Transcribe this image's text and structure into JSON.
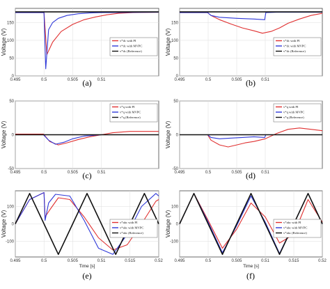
{
  "chart_data": [
    {
      "type": "line",
      "panel_label": "(a)",
      "ylabel": "Voltage (V)",
      "xlabel": "",
      "xlim": [
        0.495,
        0.52
      ],
      "ylim": [
        0,
        190
      ],
      "xticks": [
        0.495,
        0.5,
        0.505,
        0.51
      ],
      "xtick_labels": [
        "0.495",
        "0.5",
        "0.505",
        "0.51"
      ],
      "yticks": [
        0,
        50,
        100,
        150
      ],
      "ytick_labels": [
        "0",
        "50",
        "100",
        "150"
      ],
      "legend_position": "center-right",
      "series": [
        {
          "name": "v*dc with PI",
          "color": "#e03030",
          "x": [
            0.495,
            0.4999,
            0.5,
            0.5005,
            0.5015,
            0.503,
            0.505,
            0.507,
            0.509,
            0.511,
            0.513,
            0.5155,
            0.52
          ],
          "y": [
            178,
            178,
            178,
            60,
            95,
            125,
            145,
            158,
            166,
            172,
            176,
            178,
            179
          ]
        },
        {
          "name": "v*dc with MVPC",
          "color": "#2e38d8",
          "x": [
            0.495,
            0.4999,
            0.5,
            0.5003,
            0.5008,
            0.5015,
            0.5025,
            0.504,
            0.506,
            0.508,
            0.51,
            0.52
          ],
          "y": [
            178,
            178,
            178,
            20,
            130,
            150,
            162,
            170,
            175,
            177,
            178,
            179
          ]
        },
        {
          "name": "v*dc (Reference)",
          "color": "#111111",
          "x": [
            0.495,
            0.52
          ],
          "y": [
            180,
            180
          ]
        }
      ]
    },
    {
      "type": "line",
      "panel_label": "(b)",
      "ylabel": "Voltage (V)",
      "xlabel": "",
      "xlim": [
        0.495,
        0.52
      ],
      "ylim": [
        0,
        190
      ],
      "xticks": [
        0.495,
        0.5,
        0.505,
        0.51
      ],
      "xtick_labels": [
        "0.495",
        "0.5",
        "0.505",
        "0.51"
      ],
      "yticks": [
        0,
        50,
        100,
        150
      ],
      "ytick_labels": [
        "0",
        "50",
        "100",
        "150"
      ],
      "legend_position": "center-right",
      "series": [
        {
          "name": "v*dc with PI",
          "color": "#e03030",
          "x": [
            0.495,
            0.4999,
            0.5005,
            0.502,
            0.504,
            0.506,
            0.508,
            0.5095,
            0.511,
            0.5125,
            0.514,
            0.516,
            0.518,
            0.52
          ],
          "y": [
            178,
            178,
            170,
            158,
            146,
            135,
            127,
            120,
            125,
            135,
            148,
            160,
            170,
            176
          ]
        },
        {
          "name": "v*dc with MVPC",
          "color": "#2e38d8",
          "x": [
            0.495,
            0.4999,
            0.5005,
            0.502,
            0.505,
            0.508,
            0.5099,
            0.5101,
            0.512,
            0.52
          ],
          "y": [
            178,
            178,
            170,
            165,
            162,
            160,
            158,
            178,
            179,
            179
          ]
        },
        {
          "name": "v*dc (Reference)",
          "color": "#111111",
          "x": [
            0.495,
            0.52
          ],
          "y": [
            180,
            180
          ]
        }
      ]
    },
    {
      "type": "line",
      "panel_label": "(c)",
      "ylabel": "Voltage (V)",
      "xlabel": "",
      "xlim": [
        0.495,
        0.52
      ],
      "ylim": [
        -50,
        50
      ],
      "xticks": [
        0.495,
        0.5,
        0.505,
        0.51
      ],
      "xtick_labels": [
        "0.495",
        "0.5",
        "0.505",
        "0.51"
      ],
      "yticks": [
        -50,
        0,
        50
      ],
      "ytick_labels": [
        "-50",
        "0",
        "50"
      ],
      "legend_position": "upper-right",
      "series": [
        {
          "name": "v*q with PI",
          "color": "#e03030",
          "x": [
            0.495,
            0.4999,
            0.501,
            0.5025,
            0.504,
            0.506,
            0.508,
            0.51,
            0.512,
            0.515,
            0.52
          ],
          "y": [
            1,
            1,
            -10,
            -15,
            -12,
            -7,
            -3,
            0,
            3,
            5,
            5
          ]
        },
        {
          "name": "v*q with MVPC",
          "color": "#2e38d8",
          "x": [
            0.495,
            0.4999,
            0.5008,
            0.502,
            0.5035,
            0.505,
            0.507,
            0.51,
            0.52
          ],
          "y": [
            0,
            0,
            -8,
            -14,
            -11,
            -6,
            -2,
            0,
            0
          ]
        },
        {
          "name": "v*q (Reference)",
          "color": "#111111",
          "x": [
            0.495,
            0.52
          ],
          "y": [
            0,
            0
          ]
        }
      ]
    },
    {
      "type": "line",
      "panel_label": "(d)",
      "ylabel": "Voltage (V)",
      "xlabel": "",
      "xlim": [
        0.495,
        0.52
      ],
      "ylim": [
        -50,
        50
      ],
      "xticks": [
        0.495,
        0.5,
        0.505,
        0.51
      ],
      "xtick_labels": [
        "0.495",
        "0.5",
        "0.505",
        "0.51"
      ],
      "yticks": [
        -50,
        0,
        50
      ],
      "ytick_labels": [
        "-50",
        "0",
        "50"
      ],
      "legend_position": "upper-right",
      "series": [
        {
          "name": "v*q with PI",
          "color": "#e03030",
          "x": [
            0.495,
            0.4999,
            0.5005,
            0.502,
            0.5035,
            0.505,
            0.5065,
            0.508,
            0.51,
            0.512,
            0.514,
            0.516,
            0.518,
            0.52
          ],
          "y": [
            0,
            0,
            -8,
            -15,
            -18,
            -15,
            -12,
            -10,
            -6,
            2,
            8,
            10,
            8,
            6
          ]
        },
        {
          "name": "v*q with MVPC",
          "color": "#2e38d8",
          "x": [
            0.495,
            0.4999,
            0.5005,
            0.502,
            0.504,
            0.506,
            0.508,
            0.5099,
            0.5101,
            0.512,
            0.52
          ],
          "y": [
            0,
            0,
            -4,
            -6,
            -5,
            -4,
            -3,
            -4,
            0,
            0,
            0
          ]
        },
        {
          "name": "v*q (Reference)",
          "color": "#111111",
          "x": [
            0.495,
            0.52
          ],
          "y": [
            0,
            0
          ]
        }
      ]
    },
    {
      "type": "line",
      "panel_label": "(e)",
      "ylabel": "Voltage (V)",
      "xlabel": "Time [s]",
      "xlim": [
        0.495,
        0.52
      ],
      "ylim": [
        -190,
        190
      ],
      "xticks": [
        0.495,
        0.5,
        0.505,
        0.51,
        0.515,
        0.52
      ],
      "xtick_labels": [
        "0.495",
        "0.5",
        "0.505",
        "0.51",
        "0.515",
        "0.52"
      ],
      "yticks": [
        -100,
        0,
        100
      ],
      "ytick_labels": [
        "-100",
        "0",
        "100"
      ],
      "legend_position": "lower-right",
      "series": [
        {
          "name": "v*abc with PI",
          "color": "#e03030",
          "x": [
            0.495,
            0.4975,
            0.5,
            0.5002,
            0.501,
            0.5025,
            0.5045,
            0.507,
            0.5095,
            0.512,
            0.5145,
            0.517,
            0.5195,
            0.52
          ],
          "y": [
            0,
            140,
            180,
            40,
            80,
            150,
            140,
            40,
            -80,
            -150,
            -120,
            0,
            130,
            140
          ]
        },
        {
          "name": "v*abc with MVPC",
          "color": "#2e38d8",
          "x": [
            0.495,
            0.4975,
            0.5,
            0.5002,
            0.5008,
            0.502,
            0.5045,
            0.507,
            0.5095,
            0.512,
            0.5145,
            0.517,
            0.5195,
            0.52
          ],
          "y": [
            0,
            140,
            180,
            20,
            120,
            170,
            160,
            20,
            -140,
            -175,
            -60,
            100,
            175,
            160
          ]
        },
        {
          "name": "v*abc (Reference)",
          "color": "#111111",
          "x": [
            0.495,
            0.4975,
            0.5,
            0.5025,
            0.505,
            0.5075,
            0.51,
            0.5125,
            0.515,
            0.5175,
            0.52
          ],
          "y": [
            0,
            175,
            0,
            -175,
            0,
            175,
            0,
            -175,
            0,
            175,
            0
          ]
        }
      ]
    },
    {
      "type": "line",
      "panel_label": "(f)",
      "ylabel": "Voltage (V)",
      "xlabel": "Time [s]",
      "xlim": [
        0.495,
        0.52
      ],
      "ylim": [
        -190,
        190
      ],
      "xticks": [
        0.495,
        0.5,
        0.505,
        0.51,
        0.515,
        0.52
      ],
      "xtick_labels": [
        "0.495",
        "0.5",
        "0.505",
        "0.51",
        "0.515",
        "0.52"
      ],
      "yticks": [
        -100,
        0,
        100
      ],
      "ytick_labels": [
        "-100",
        "0",
        "100"
      ],
      "legend_position": "lower-right",
      "series": [
        {
          "name": "v*abc with PI",
          "color": "#e03030",
          "x": [
            0.495,
            0.4975,
            0.5,
            0.5025,
            0.505,
            0.5075,
            0.51,
            0.5125,
            0.515,
            0.5175,
            0.52
          ],
          "y": [
            0,
            175,
            20,
            -140,
            -30,
            120,
            40,
            -110,
            -60,
            140,
            10
          ]
        },
        {
          "name": "v*abc with MVPC",
          "color": "#2e38d8",
          "x": [
            0.495,
            0.4975,
            0.5,
            0.5025,
            0.505,
            0.5075,
            0.51,
            0.5125,
            0.515,
            0.5175,
            0.52
          ],
          "y": [
            0,
            175,
            10,
            -165,
            -10,
            160,
            10,
            -170,
            0,
            175,
            0
          ]
        },
        {
          "name": "v*abc (Reference)",
          "color": "#111111",
          "x": [
            0.495,
            0.4975,
            0.5,
            0.5025,
            0.505,
            0.5075,
            0.51,
            0.5125,
            0.515,
            0.5175,
            0.52
          ],
          "y": [
            0,
            175,
            0,
            -175,
            0,
            175,
            0,
            -175,
            0,
            175,
            0
          ]
        }
      ]
    }
  ]
}
